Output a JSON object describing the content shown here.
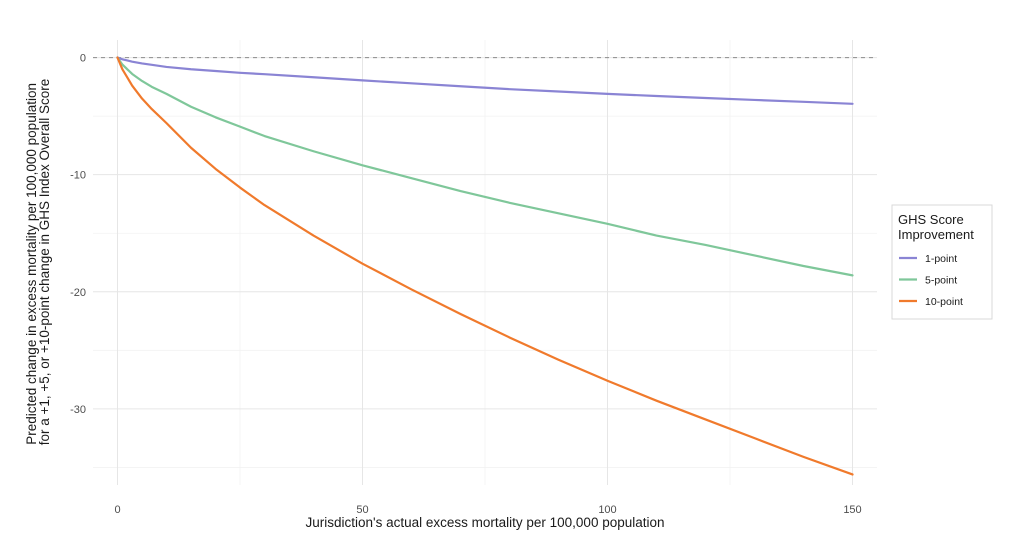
{
  "chart_data": {
    "type": "line",
    "xlabel": "Jurisdiction's actual excess mortality per 100,000 population",
    "ylabel_lines": [
      "Predicted change in excess mortality per 100,000 population",
      "for a +1, +5, or +10-point change in GHS Index Overall Score"
    ],
    "xlim": [
      -5,
      155
    ],
    "ylim": [
      -36.5,
      1.5
    ],
    "x_ticks": [
      0,
      50,
      100,
      150
    ],
    "x_tick_labels": [
      "0",
      "50",
      "100",
      "150"
    ],
    "y_ticks": [
      0,
      -10,
      -20,
      -30
    ],
    "y_tick_labels": [
      "0",
      "-10",
      "-20",
      "-30"
    ],
    "grid": true,
    "reference_line": {
      "y": 0,
      "style": "dashed"
    },
    "legend": {
      "title_lines": [
        "GHS Score",
        "Improvement"
      ],
      "placement": "right"
    },
    "x": [
      0,
      1,
      2,
      3,
      5,
      7,
      10,
      15,
      20,
      25,
      30,
      40,
      50,
      60,
      70,
      80,
      90,
      100,
      110,
      120,
      130,
      140,
      150
    ],
    "series": [
      {
        "name": "1-point",
        "color": "#8a84d4",
        "values": [
          0,
          -0.15,
          -0.25,
          -0.35,
          -0.5,
          -0.62,
          -0.8,
          -1.0,
          -1.15,
          -1.3,
          -1.42,
          -1.68,
          -1.95,
          -2.2,
          -2.45,
          -2.7,
          -2.9,
          -3.1,
          -3.28,
          -3.45,
          -3.62,
          -3.78,
          -3.95
        ]
      },
      {
        "name": "5-point",
        "color": "#7fc79a",
        "values": [
          0,
          -0.6,
          -1.0,
          -1.4,
          -2.0,
          -2.5,
          -3.1,
          -4.2,
          -5.1,
          -5.9,
          -6.7,
          -8.0,
          -9.2,
          -10.3,
          -11.4,
          -12.4,
          -13.3,
          -14.2,
          -15.2,
          -16.0,
          -16.9,
          -17.8,
          -18.6
        ]
      },
      {
        "name": "10-point",
        "color": "#f07a2c",
        "values": [
          0,
          -1.0,
          -1.7,
          -2.4,
          -3.5,
          -4.4,
          -5.6,
          -7.7,
          -9.5,
          -11.1,
          -12.6,
          -15.2,
          -17.6,
          -19.8,
          -21.9,
          -23.9,
          -25.8,
          -27.6,
          -29.3,
          -30.9,
          -32.5,
          -34.1,
          -35.6
        ]
      }
    ]
  }
}
